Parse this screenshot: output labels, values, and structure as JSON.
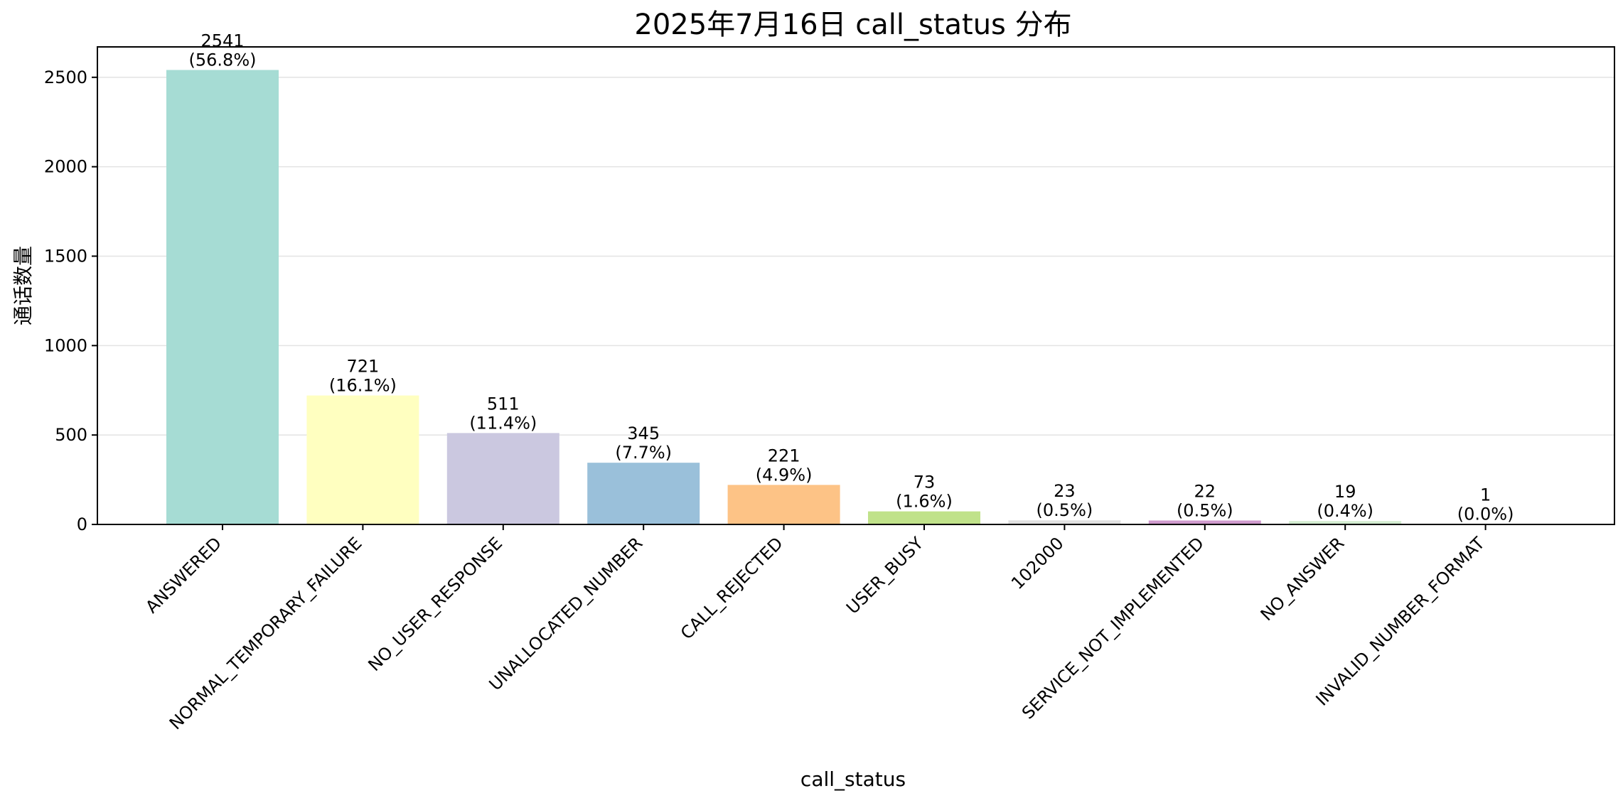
{
  "chart_data": {
    "type": "bar",
    "title": "2025年7月16日 call_status 分布",
    "xlabel": "call_status",
    "ylabel": "通话数量",
    "ylim": [
      0,
      2670
    ],
    "yticks": [
      0,
      500,
      1000,
      1500,
      2000,
      2500
    ],
    "grid": "y",
    "categories": [
      "ANSWERED",
      "NORMAL_TEMPORARY_FAILURE",
      "NO_USER_RESPONSE",
      "UNALLOCATED_NUMBER",
      "CALL_REJECTED",
      "USER_BUSY",
      "102000",
      "SERVICE_NOT_IMPLEMENTED",
      "NO_ANSWER",
      "INVALID_NUMBER_FORMAT"
    ],
    "values": [
      2541,
      721,
      511,
      345,
      221,
      73,
      23,
      22,
      19,
      1
    ],
    "percent_labels": [
      "(56.8%)",
      "(16.1%)",
      "(11.4%)",
      "(7.7%)",
      "(4.9%)",
      "(1.6%)",
      "(0.5%)",
      "(0.5%)",
      "(0.4%)",
      "(0.0%)"
    ],
    "colors": [
      "#a6dcd4",
      "#ffffc0",
      "#cbc8e0",
      "#9ac0da",
      "#fdc386",
      "#c0e28a",
      "#e0e0e0",
      "#cf9acd",
      "#d2ecd0",
      "#ffffff"
    ]
  }
}
